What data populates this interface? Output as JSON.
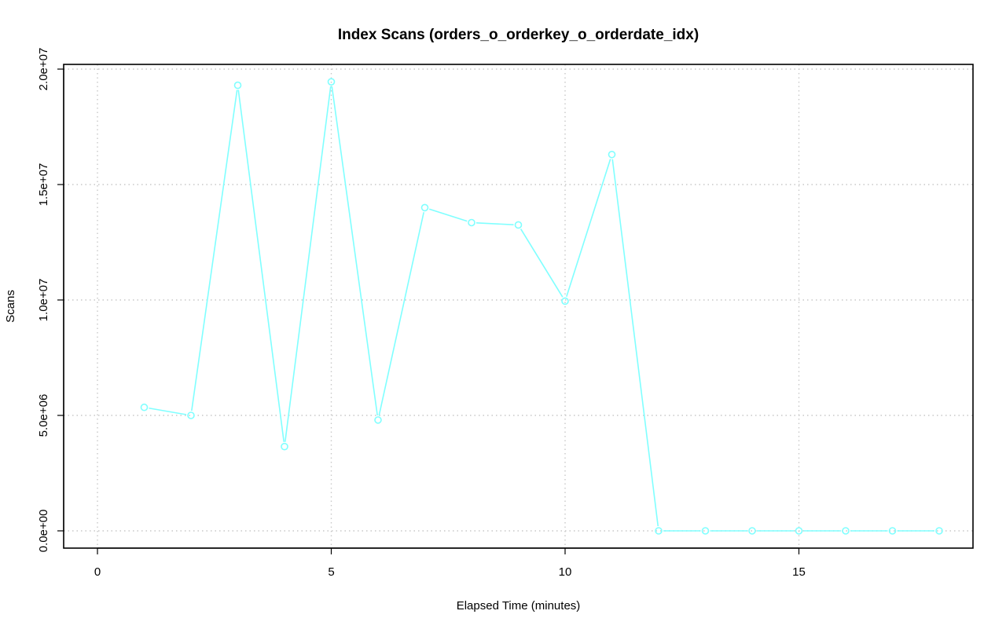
{
  "chart_data": {
    "type": "line",
    "title": "Index Scans (orders_o_orderkey_o_orderdate_idx)",
    "xlabel": "Elapsed Time (minutes)",
    "ylabel": "Scans",
    "xlim": [
      0,
      18
    ],
    "ylim": [
      0,
      20000000
    ],
    "x_ticks": [
      0,
      5,
      10,
      15
    ],
    "x_tick_labels": [
      "0",
      "5",
      "10",
      "15"
    ],
    "y_ticks": [
      0,
      5000000,
      10000000,
      15000000,
      20000000
    ],
    "y_tick_labels": [
      "0.0e+00",
      "5.0e+06",
      "1.0e+07",
      "1.5e+07",
      "2.0e+07"
    ],
    "grid": true,
    "series": [
      {
        "color": "#80ffff",
        "marker": "open-circle",
        "x": [
          1,
          2,
          3,
          4,
          5,
          6,
          7,
          8,
          9,
          10,
          11,
          12,
          13,
          14,
          15,
          16,
          17,
          18
        ],
        "values": [
          5350000,
          5000000,
          19300000,
          3650000,
          19450000,
          4800000,
          14000000,
          13350000,
          13250000,
          9950000,
          16300000,
          0,
          0,
          0,
          0,
          0,
          0,
          0
        ]
      }
    ]
  }
}
